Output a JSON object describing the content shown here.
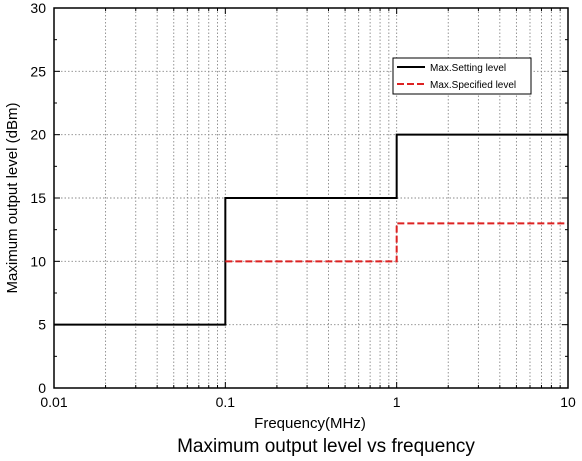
{
  "chart_data": {
    "type": "line",
    "title": "",
    "caption": "Maximum output level vs frequency",
    "xlabel": "Frequency(MHz)",
    "ylabel": "Maximum output level (dBm)",
    "x_scale": "log",
    "xlim": [
      0.01,
      10
    ],
    "ylim": [
      0,
      30
    ],
    "x_ticks": [
      "0.01",
      "0.1",
      "1",
      "10"
    ],
    "y_ticks": [
      "0",
      "5",
      "10",
      "15",
      "20",
      "25",
      "30"
    ],
    "grid": true,
    "legend_position": "top-right",
    "series": [
      {
        "name": "Max.Setting level",
        "color": "#000000",
        "style": "solid",
        "x": [
          0.01,
          0.1,
          0.1,
          1,
          1,
          10
        ],
        "y": [
          5,
          5,
          15,
          15,
          20,
          20
        ]
      },
      {
        "name": "Max.Specified level",
        "color": "#dd2222",
        "style": "dashed",
        "x": [
          0.1,
          1,
          1,
          10
        ],
        "y": [
          10,
          10,
          13,
          13
        ]
      }
    ]
  }
}
